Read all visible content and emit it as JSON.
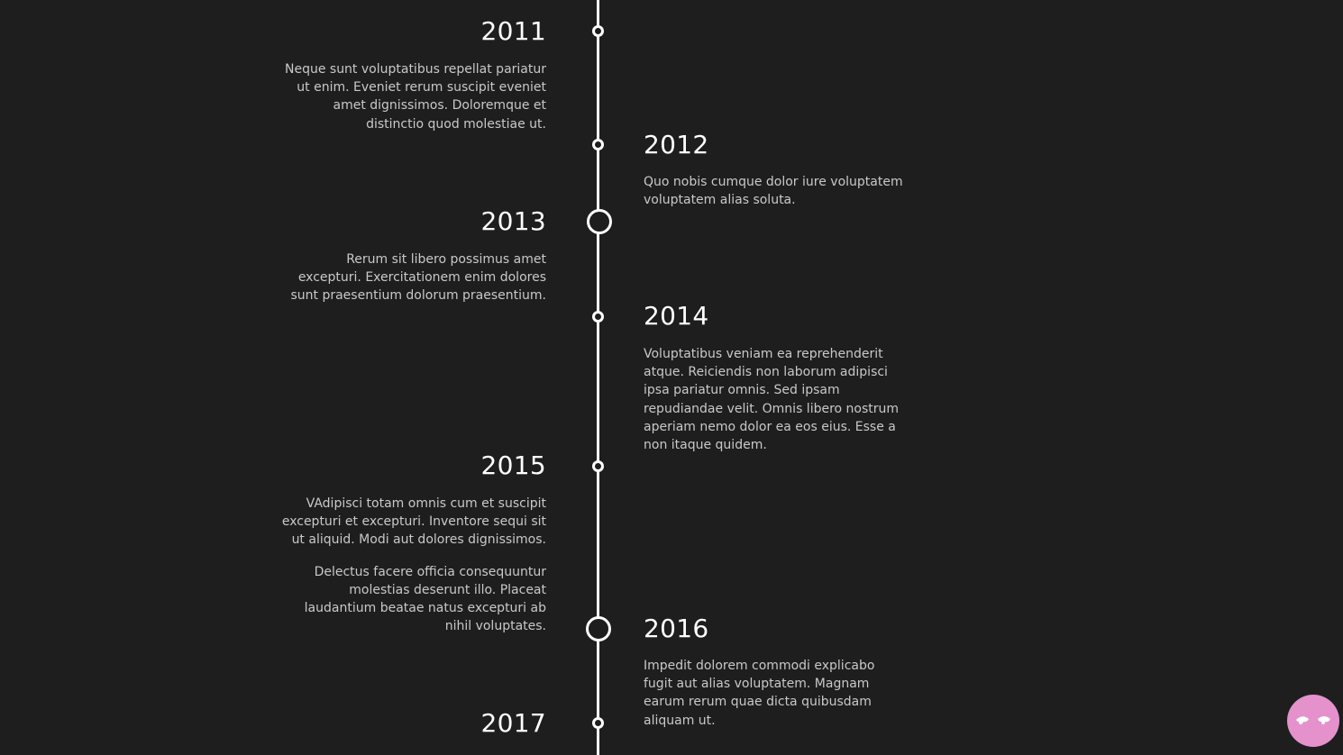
{
  "timeline": {
    "entries": [
      {
        "year": "2011",
        "paragraphs": [
          "Neque sunt voluptatibus repellat pariatur ut enim. Eveniet rerum suscipit eveniet amet dignissimos. Doloremque et distinctio quod molestiae ut."
        ]
      },
      {
        "year": "2012",
        "paragraphs": [
          "Quo nobis cumque dolor iure voluptatem voluptatem alias soluta."
        ]
      },
      {
        "year": "2013",
        "paragraphs": [
          "Rerum sit libero possimus amet excepturi. Exercitationem enim dolores sunt praesentium dolorum praesentium."
        ]
      },
      {
        "year": "2014",
        "paragraphs": [
          "Voluptatibus veniam ea reprehenderit atque. Reiciendis non laborum adipisci ipsa pariatur omnis. Sed ipsam repudiandae velit. Omnis libero nostrum aperiam nemo dolor ea eos eius. Esse a non itaque quidem."
        ]
      },
      {
        "year": "2015",
        "paragraphs": [
          "VAdipisci totam omnis cum et suscipit excepturi et excepturi. Inventore sequi sit ut aliquid. Modi aut dolores dignissimos.",
          "Delectus facere officia consequuntur molestias deserunt illo. Placeat laudantium beatae natus excepturi ab nihil voluptates."
        ]
      },
      {
        "year": "2016",
        "paragraphs": [
          "Impedit dolorem commodi explicabo fugit aut alias voluptatem. Magnam earum rerum quae dicta quibusdam aliquam ut."
        ]
      },
      {
        "year": "2017",
        "paragraphs": []
      }
    ]
  },
  "colors": {
    "background": "#1e1e1f",
    "line": "#ffffff",
    "year_text": "#ffffff",
    "body_text": "#c9c9c9",
    "mascot_button": "#e591cc"
  },
  "icons": {
    "mascot": "eyes-icon"
  }
}
